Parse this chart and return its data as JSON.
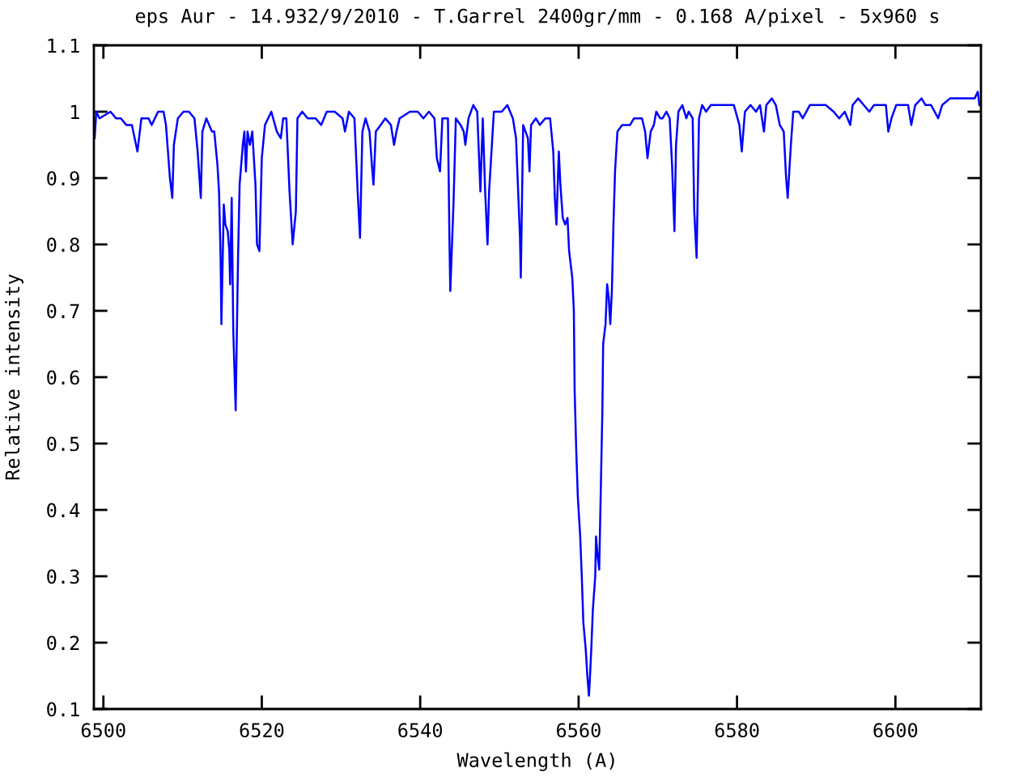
{
  "chart_data": {
    "type": "line",
    "title": "eps Aur - 14.932/9/2010 - T.Garrel 2400gr/mm - 0.168 A/pixel - 5x960 s",
    "xlabel": "Wavelength (A)",
    "ylabel": "Relative intensity",
    "xlim": [
      6498.8,
      6610.8
    ],
    "xticks": [
      6500,
      6520,
      6540,
      6560,
      6580,
      6600
    ],
    "ylim": [
      0.1,
      1.1
    ],
    "yticks": [
      0.1,
      0.2,
      0.3,
      0.4,
      0.5,
      0.6,
      0.7,
      0.8,
      0.9,
      1,
      1.1
    ],
    "series": [
      {
        "color": "#0000ff",
        "x": [
          6498.9,
          6499.1,
          6499.5,
          6500.9,
          6501.6,
          6502.2,
          6502.9,
          6503.6,
          6504.3,
          6504.8,
          6505.7,
          6506.1,
          6506.9,
          6507.6,
          6507.9,
          6508.4,
          6508.7,
          6508.9,
          6509.4,
          6510.1,
          6510.8,
          6511.5,
          6511.9,
          6512.3,
          6512.5,
          6513.0,
          6513.7,
          6514.0,
          6514.4,
          6514.6,
          6514.8,
          6514.9,
          6515.2,
          6515.4,
          6515.7,
          6515.9,
          6516.0,
          6516.2,
          6516.4,
          6516.7,
          6517.0,
          6517.2,
          6517.6,
          6517.8,
          6518.0,
          6518.2,
          6518.5,
          6518.8,
          6519.2,
          6519.4,
          6519.7,
          6520.0,
          6520.4,
          6521.2,
          6521.9,
          6522.4,
          6522.7,
          6523.1,
          6523.5,
          6523.9,
          6524.3,
          6524.5,
          6525.1,
          6525.8,
          6526.8,
          6527.5,
          6528.2,
          6529.2,
          6530.2,
          6530.5,
          6531.0,
          6531.7,
          6532.1,
          6532.4,
          6532.7,
          6533.1,
          6533.6,
          6533.9,
          6534.1,
          6534.4,
          6535.0,
          6535.6,
          6536.3,
          6536.7,
          6537.0,
          6537.4,
          6538.7,
          6539.7,
          6540.4,
          6541.1,
          6541.8,
          6542.1,
          6542.5,
          6542.8,
          6543.5,
          6543.7,
          6543.8,
          6544.2,
          6544.5,
          6545.1,
          6545.5,
          6545.7,
          6546.1,
          6546.7,
          6547.2,
          6547.6,
          6547.9,
          6548.2,
          6548.5,
          6548.7,
          6549.3,
          6550.3,
          6551.0,
          6551.7,
          6552.1,
          6552.6,
          6552.7,
          6553.0,
          6553.6,
          6553.8,
          6554.0,
          6554.6,
          6555.1,
          6555.8,
          6556.4,
          6556.8,
          6557.0,
          6557.2,
          6557.5,
          6557.7,
          6558.0,
          6558.3,
          6558.6,
          6558.8,
          6559.2,
          6559.4,
          6559.5,
          6559.7,
          6559.9,
          6560.2,
          6560.4,
          6560.6,
          6560.9,
          6561.1,
          6561.3,
          6561.4,
          6561.6,
          6561.8,
          6562.1,
          6562.2,
          6562.4,
          6562.6,
          6562.8,
          6563.0,
          6563.1,
          6563.4,
          6563.6,
          6563.8,
          6564.0,
          6564.2,
          6564.4,
          6564.6,
          6564.9,
          6565.5,
          6566.0,
          6566.5,
          6567.0,
          6568.0,
          6568.4,
          6568.7,
          6569.1,
          6569.5,
          6569.8,
          6570.3,
          6570.6,
          6571.1,
          6571.5,
          6571.8,
          6572.1,
          6572.3,
          6572.6,
          6573.1,
          6573.6,
          6573.9,
          6574.4,
          6574.6,
          6574.9,
          6575.2,
          6575.6,
          6576.1,
          6576.7,
          6577.6,
          6578.9,
          6579.6,
          6580.3,
          6580.6,
          6581.0,
          6581.7,
          6582.4,
          6582.9,
          6583.4,
          6583.7,
          6584.4,
          6584.9,
          6585.4,
          6585.9,
          6586.2,
          6586.4,
          6586.8,
          6587.1,
          6587.8,
          6588.3,
          6589.2,
          6590.2,
          6591.2,
          6592.2,
          6592.9,
          6593.6,
          6594.3,
          6594.6,
          6595.3,
          6596.0,
          6596.7,
          6597.3,
          6598.4,
          6598.8,
          6599.1,
          6599.5,
          6600.1,
          6601.1,
          6601.6,
          6602.0,
          6602.5,
          6603.3,
          6603.8,
          6604.5,
          6605.4,
          6605.9,
          6606.9,
          6607.9,
          6608.9,
          6610.0,
          6610.4,
          6610.6
        ],
        "values": [
          0.96,
          1.0,
          0.99,
          1.0,
          0.99,
          0.99,
          0.98,
          0.98,
          0.94,
          0.99,
          0.99,
          0.98,
          1.0,
          1.0,
          0.98,
          0.9,
          0.87,
          0.95,
          0.99,
          1.0,
          1.0,
          0.99,
          0.94,
          0.87,
          0.97,
          0.99,
          0.97,
          0.97,
          0.92,
          0.88,
          0.78,
          0.68,
          0.86,
          0.83,
          0.82,
          0.79,
          0.74,
          0.87,
          0.67,
          0.55,
          0.78,
          0.89,
          0.95,
          0.97,
          0.91,
          0.97,
          0.95,
          0.97,
          0.89,
          0.8,
          0.79,
          0.93,
          0.98,
          1.0,
          0.97,
          0.96,
          0.99,
          0.99,
          0.88,
          0.8,
          0.85,
          0.99,
          1.0,
          0.99,
          0.99,
          0.98,
          1.0,
          1.0,
          0.99,
          0.97,
          1.0,
          0.99,
          0.88,
          0.81,
          0.97,
          0.99,
          0.97,
          0.92,
          0.89,
          0.97,
          0.98,
          0.99,
          0.98,
          0.95,
          0.97,
          0.99,
          1.0,
          1.0,
          0.99,
          1.0,
          0.99,
          0.93,
          0.91,
          0.99,
          0.99,
          0.8,
          0.73,
          0.86,
          0.99,
          0.98,
          0.97,
          0.95,
          0.99,
          1.01,
          1.0,
          0.88,
          0.99,
          0.88,
          0.8,
          0.88,
          1.0,
          1.0,
          1.01,
          0.99,
          0.96,
          0.81,
          0.75,
          0.98,
          0.96,
          0.91,
          0.98,
          0.99,
          0.98,
          0.99,
          0.99,
          0.94,
          0.87,
          0.83,
          0.94,
          0.89,
          0.84,
          0.83,
          0.84,
          0.79,
          0.75,
          0.7,
          0.58,
          0.49,
          0.42,
          0.36,
          0.3,
          0.23,
          0.19,
          0.15,
          0.12,
          0.14,
          0.19,
          0.25,
          0.3,
          0.36,
          0.33,
          0.31,
          0.43,
          0.55,
          0.65,
          0.68,
          0.74,
          0.72,
          0.68,
          0.73,
          0.83,
          0.91,
          0.97,
          0.98,
          0.98,
          0.98,
          0.99,
          0.99,
          0.97,
          0.93,
          0.97,
          0.98,
          1.0,
          0.99,
          0.99,
          1.0,
          0.99,
          0.92,
          0.82,
          0.95,
          1.0,
          1.01,
          0.99,
          1.0,
          0.99,
          0.85,
          0.78,
          0.99,
          1.01,
          1.0,
          1.01,
          1.01,
          1.01,
          1.01,
          0.98,
          0.94,
          1.0,
          1.01,
          1.0,
          1.01,
          0.97,
          1.01,
          1.02,
          1.01,
          0.98,
          0.97,
          0.9,
          0.87,
          0.95,
          1.0,
          1.0,
          0.99,
          1.01,
          1.01,
          1.01,
          1.0,
          0.99,
          1.0,
          0.98,
          1.01,
          1.02,
          1.01,
          1.0,
          1.01,
          1.01,
          1.01,
          0.97,
          0.99,
          1.01,
          1.01,
          1.01,
          0.98,
          1.01,
          1.02,
          1.01,
          1.01,
          0.99,
          1.01,
          1.02,
          1.02,
          1.02,
          1.02,
          1.03,
          1.01
        ]
      }
    ]
  }
}
